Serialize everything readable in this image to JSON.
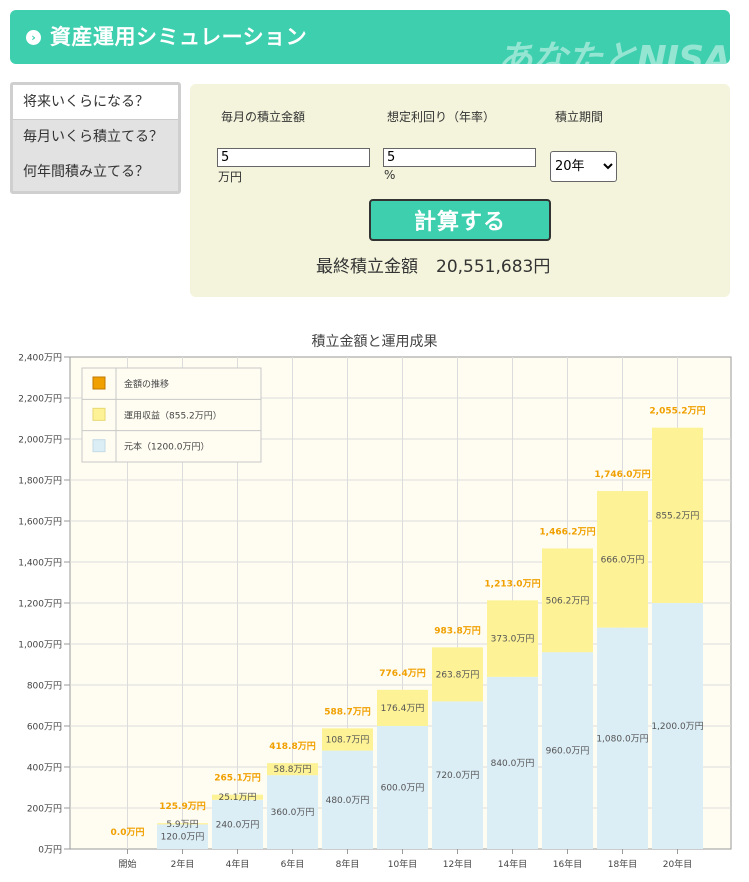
{
  "header": {
    "title": "資産運用シミュレーション",
    "brand": "あなたとNISA"
  },
  "mode_tabs": [
    {
      "label": "将来いくらになる？"
    },
    {
      "label": "毎月いくら積立てる？"
    },
    {
      "label": "何年間積み立てる？"
    }
  ],
  "form": {
    "monthly_label": "毎月の積立金額",
    "monthly_value": "5",
    "monthly_unit": "万円",
    "rate_label": "想定利回り（年率）",
    "rate_value": "5",
    "rate_unit": "%",
    "period_label": "積立期間",
    "period_selected": "20年",
    "calc_label": "計算する",
    "result_label": "最終積立金額",
    "result_value": "20,551,683円"
  },
  "colors": {
    "accent": "#3ecfaf",
    "principal": "#dbedf5",
    "gain": "#fdf296",
    "total_label": "#f0a000",
    "legend_total": "#f0a000"
  },
  "chart_data": {
    "type": "bar",
    "title": "積立金額と運用成果",
    "categories": [
      "開始",
      "2年目",
      "4年目",
      "6年目",
      "8年目",
      "10年目",
      "12年目",
      "14年目",
      "16年目",
      "18年目",
      "20年目"
    ],
    "series": [
      {
        "name": "元本（1200.0万円）",
        "values": [
          0,
          120,
          240,
          360,
          480,
          600,
          720,
          840,
          960,
          1080,
          1200
        ]
      },
      {
        "name": "運用収益（855.2万円）",
        "values": [
          0,
          5.9,
          25.1,
          58.8,
          108.7,
          176.4,
          263.8,
          373.0,
          506.2,
          666.0,
          855.2
        ]
      }
    ],
    "totals": [
      0,
      125.9,
      265.1,
      418.8,
      588.7,
      776.4,
      983.8,
      1213.0,
      1466.2,
      1746.0,
      2055.2
    ],
    "principal_labels": [
      "",
      "120.0万円",
      "240.0万円",
      "360.0万円",
      "480.0万円",
      "600.0万円",
      "720.0万円",
      "840.0万円",
      "960.0万円",
      "1,080.0万円",
      "1,200.0万円"
    ],
    "gain_labels": [
      "",
      "5.9万円",
      "25.1万円",
      "58.8万円",
      "108.7万円",
      "176.4万円",
      "263.8万円",
      "373.0万円",
      "506.2万円",
      "666.0万円",
      "855.2万円"
    ],
    "total_labels": [
      "0.0万円",
      "125.9万円",
      "265.1万円",
      "418.8万円",
      "588.7万円",
      "776.4万円",
      "983.8万円",
      "1,213.0万円",
      "1,466.2万円",
      "1,746.0万円",
      "2,055.2万円"
    ],
    "legend": [
      "金額の推移",
      "運用収益（855.2万円）",
      "元本（1200.0万円）"
    ],
    "y_ticks": [
      "0万円",
      "200万円",
      "400万円",
      "600万円",
      "800万円",
      "1,000万円",
      "1,200万円",
      "1,400万円",
      "1,600万円",
      "1,800万円",
      "2,000万円",
      "2,200万円",
      "2,400万円"
    ],
    "ylim": [
      0,
      2400
    ],
    "grid": true,
    "legend_position": "top-left"
  }
}
